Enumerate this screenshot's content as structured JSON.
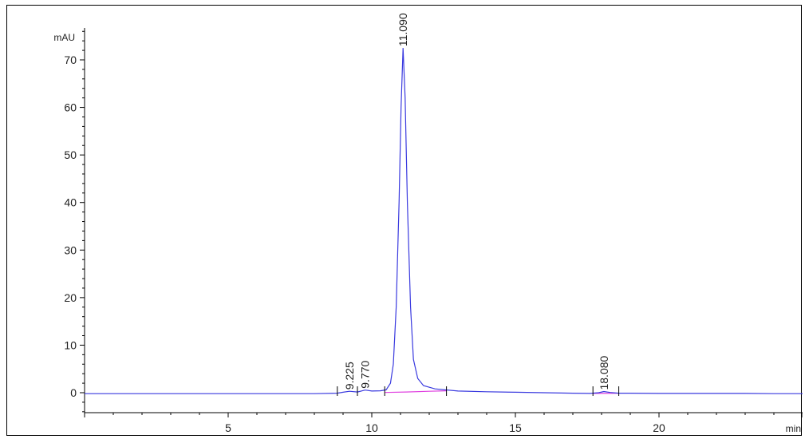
{
  "chart_data": {
    "type": "line",
    "title": "",
    "ylabel": "mAU",
    "xlabel": "min",
    "xlim": [
      0,
      25
    ],
    "ylim": [
      -4.5,
      77
    ],
    "x_ticks": [
      5,
      10,
      15,
      20
    ],
    "y_ticks": [
      0,
      10,
      20,
      30,
      40,
      50,
      60,
      70
    ],
    "grid": false,
    "series": [
      {
        "color": "#3a3adf",
        "points": [
          [
            0,
            -0.2
          ],
          [
            1,
            -0.2
          ],
          [
            2,
            -0.2
          ],
          [
            3,
            -0.2
          ],
          [
            4,
            -0.2
          ],
          [
            5,
            -0.2
          ],
          [
            6,
            -0.2
          ],
          [
            7,
            -0.2
          ],
          [
            8,
            -0.2
          ],
          [
            8.8,
            -0.1
          ],
          [
            9.0,
            0.1
          ],
          [
            9.225,
            0.3
          ],
          [
            9.5,
            0.15
          ],
          [
            9.77,
            0.55
          ],
          [
            10.0,
            0.35
          ],
          [
            10.3,
            0.4
          ],
          [
            10.5,
            0.6
          ],
          [
            10.65,
            2.0
          ],
          [
            10.75,
            6.0
          ],
          [
            10.85,
            18.0
          ],
          [
            10.95,
            40.0
          ],
          [
            11.02,
            60.0
          ],
          [
            11.09,
            72.5
          ],
          [
            11.16,
            62.0
          ],
          [
            11.24,
            40.0
          ],
          [
            11.35,
            18.0
          ],
          [
            11.45,
            7.0
          ],
          [
            11.6,
            3.0
          ],
          [
            11.8,
            1.5
          ],
          [
            12.2,
            0.8
          ],
          [
            13.0,
            0.35
          ],
          [
            14.0,
            0.2
          ],
          [
            15.0,
            0.1
          ],
          [
            16.0,
            0.0
          ],
          [
            17.0,
            -0.1
          ],
          [
            17.6,
            -0.15
          ],
          [
            17.9,
            0.0
          ],
          [
            18.08,
            0.25
          ],
          [
            18.3,
            0.05
          ],
          [
            18.6,
            -0.1
          ],
          [
            19.0,
            -0.1
          ],
          [
            20.0,
            -0.15
          ],
          [
            21.0,
            -0.15
          ],
          [
            22.0,
            -0.15
          ],
          [
            23.0,
            -0.15
          ],
          [
            24.0,
            -0.2
          ],
          [
            25.0,
            -0.2
          ]
        ]
      }
    ],
    "baselines": [
      {
        "color": "#e040e0",
        "points": [
          [
            10.45,
            0.05
          ],
          [
            11.2,
            0.15
          ],
          [
            12.0,
            0.3
          ],
          [
            12.6,
            0.4
          ]
        ]
      },
      {
        "color": "#e040e0",
        "points": [
          [
            17.7,
            -0.15
          ],
          [
            18.6,
            -0.1
          ]
        ]
      }
    ],
    "peaks": [
      {
        "label": "9.225",
        "x": 9.225
      },
      {
        "label": "9.770",
        "x": 9.77
      },
      {
        "label": "11.090",
        "x": 11.09
      },
      {
        "label": "18.080",
        "x": 18.08
      }
    ],
    "integration_marks": [
      8.8,
      9.5,
      10.45,
      12.6,
      17.7,
      18.6
    ]
  }
}
